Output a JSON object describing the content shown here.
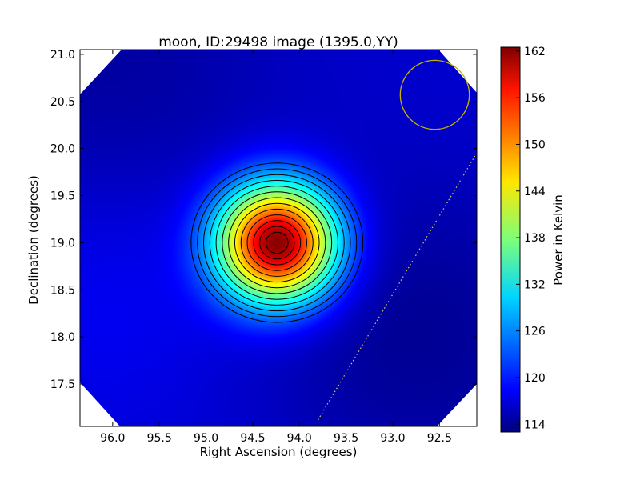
{
  "chart_data": [
    {
      "type": "heatmap",
      "title": "moon, ID:29498 image (1395.0,YY)",
      "xlabel": "Right Ascension (degrees)",
      "ylabel": "Declination (degrees)",
      "xlim": [
        96.35,
        92.1
      ],
      "ylim": [
        17.05,
        21.05
      ],
      "x_axis_inverted": true,
      "x_ticks": [
        96.0,
        95.5,
        95.0,
        94.5,
        94.0,
        93.5,
        93.0,
        92.5
      ],
      "x_tick_labels": [
        "96.0",
        "95.5",
        "95.0",
        "94.5",
        "94.0",
        "93.5",
        "93.0",
        "92.5"
      ],
      "y_ticks": [
        17.5,
        18.0,
        18.5,
        19.0,
        19.5,
        20.0,
        20.5,
        21.0
      ],
      "y_tick_labels": [
        "17.5",
        "18.0",
        "18.5",
        "19.0",
        "19.5",
        "20.0",
        "20.5",
        "21.0"
      ],
      "grid": false,
      "colormap": "jet",
      "peak": {
        "ra": 94.24,
        "dec": 19.0,
        "value": 163
      },
      "background_value": 117,
      "contours": {
        "color": "#000000",
        "levels_approx": 13
      },
      "beam_circle": {
        "ra": 92.55,
        "dec": 20.57,
        "radius_deg": 0.37,
        "color": "#c8b400"
      },
      "dotted_line": {
        "from": {
          "ra": 93.8,
          "dec": 17.12
        },
        "to": {
          "ra": 92.12,
          "dec": 19.92
        },
        "color": "#d0d060"
      }
    },
    {
      "type": "colorbar",
      "label": "Power in Kelvin",
      "range": [
        113,
        162.5
      ],
      "ticks": [
        114,
        120,
        126,
        132,
        138,
        144,
        150,
        156,
        162
      ],
      "tick_labels": [
        "114",
        "120",
        "126",
        "132",
        "138",
        "144",
        "150",
        "156",
        "162"
      ]
    }
  ]
}
